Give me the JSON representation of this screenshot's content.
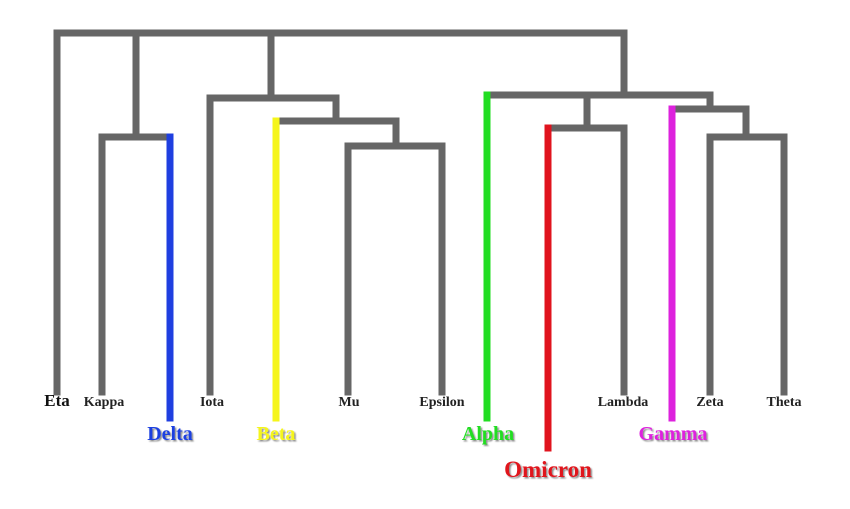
{
  "colors": {
    "branch": "#666666",
    "delta": "#1f3fe0",
    "beta": "#f5f51a",
    "alpha": "#22dd22",
    "omicron": "#e0141e",
    "gamma": "#dd22dd"
  },
  "leaves": {
    "eta": "Eta",
    "kappa": "Kappa",
    "delta": "Delta",
    "iota": "Iota",
    "beta": "Beta",
    "mu": "Mu",
    "epsilon": "Epsilon",
    "alpha": "Alpha",
    "omicron": "Omicron",
    "lambda": "Lambda",
    "gamma": "Gamma",
    "zeta": "Zeta",
    "theta": "Theta"
  }
}
